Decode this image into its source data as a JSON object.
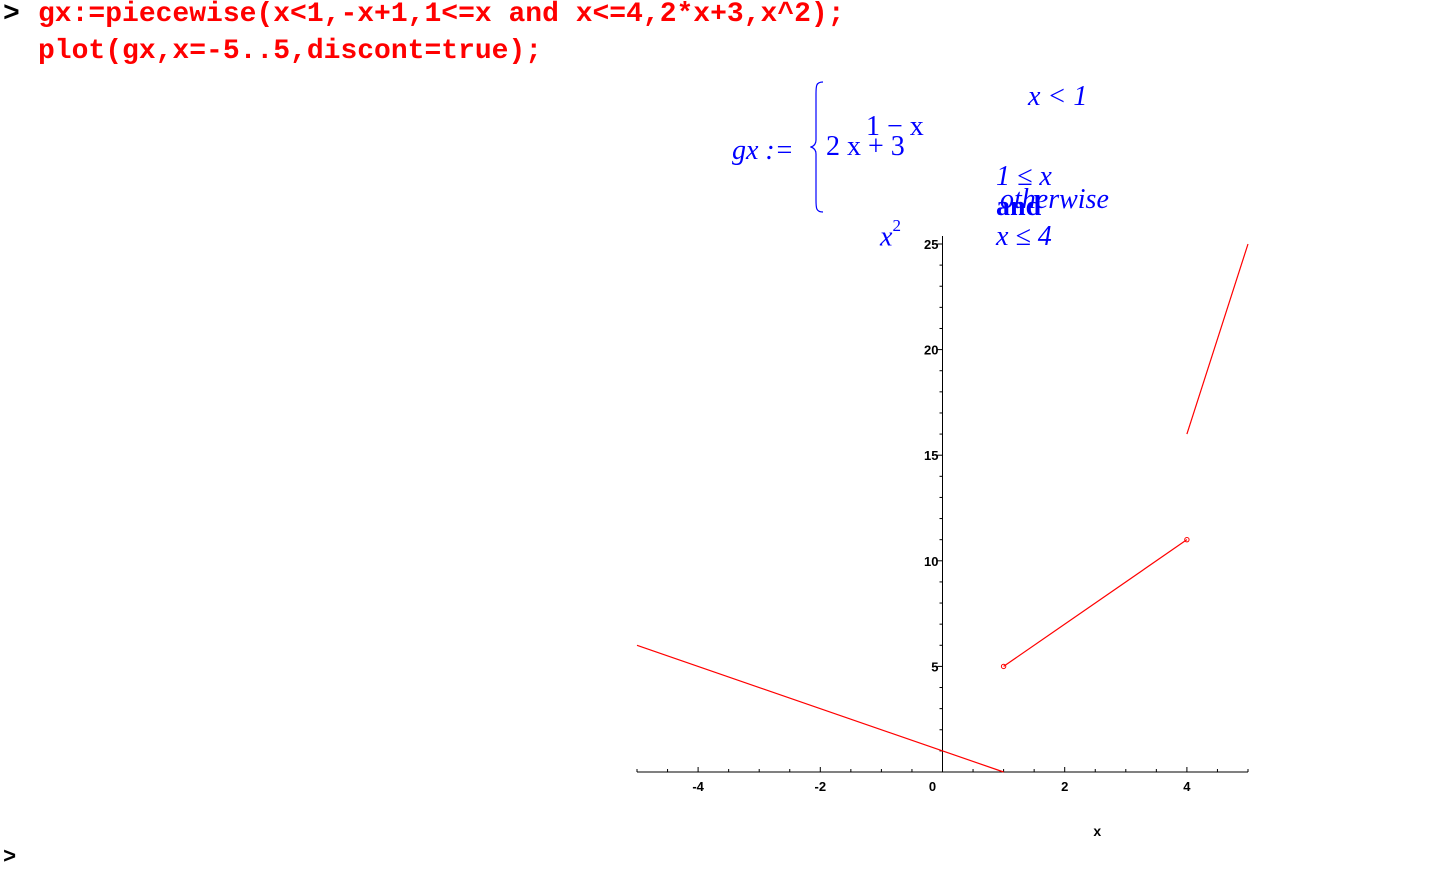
{
  "worksheet": {
    "prompt_symbol": ">",
    "input_lines": [
      "gx:=piecewise(x<1,-x+1,1<=x and x<=4,2*x+3,x^2);",
      "plot(gx,x=-5..5,discont=true);"
    ],
    "output": {
      "lhs": "gx :=",
      "cases": [
        {
          "expr": "1 − x",
          "condition": "x < 1"
        },
        {
          "expr": "2 x + 3",
          "condition_parts": [
            "1 ≤ x",
            "and",
            "x ≤ 4"
          ]
        },
        {
          "expr_base": "x",
          "expr_sup": "2",
          "condition": "otherwise"
        }
      ]
    },
    "trailing_prompt": ">"
  },
  "colors": {
    "input_text": "#ff0000",
    "output_math": "#0000ff",
    "plot_line": "#ff0000",
    "axes": "#000000"
  },
  "chart_data": {
    "type": "line",
    "title": "",
    "xlabel": "x",
    "ylabel": "",
    "xlim": [
      -5,
      5
    ],
    "ylim": [
      0,
      25
    ],
    "x_ticks": [
      -4,
      -2,
      0,
      2,
      4
    ],
    "y_ticks": [
      0,
      5,
      10,
      15,
      20,
      25
    ],
    "grid": false,
    "series": [
      {
        "points": [
          [
            -5,
            6
          ],
          [
            1,
            0
          ]
        ]
      },
      {
        "points": [
          [
            1,
            5
          ],
          [
            4,
            11
          ]
        ],
        "closed_endpoints": true
      },
      {
        "points": [
          [
            4,
            16
          ],
          [
            5,
            25
          ]
        ]
      }
    ]
  }
}
